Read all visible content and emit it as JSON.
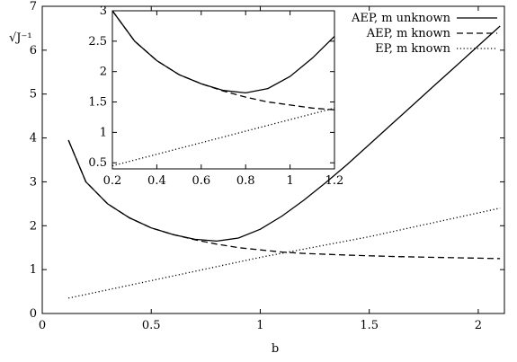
{
  "chart_data": [
    {
      "type": "line",
      "xlabel": "b",
      "ylabel": "√J⁻¹",
      "xlim": [
        0,
        2.12
      ],
      "ylim": [
        0,
        7
      ],
      "xticks": [
        "0",
        "0.5",
        "1",
        "1.5",
        "2"
      ],
      "yticks": [
        "0",
        "1",
        "2",
        "3",
        "4",
        "5",
        "6",
        "7"
      ],
      "legend_position": "top-right",
      "grid": false,
      "series": [
        {
          "name": "AEP, m unknown",
          "style": "solid",
          "x": [
            0.12,
            0.2,
            0.3,
            0.4,
            0.5,
            0.6,
            0.7,
            0.8,
            0.9,
            1.0,
            1.1,
            1.2,
            1.3,
            1.4,
            1.5,
            1.6,
            1.7,
            1.8,
            1.9,
            2.0,
            2.1
          ],
          "y": [
            3.95,
            3.0,
            2.5,
            2.18,
            1.95,
            1.8,
            1.69,
            1.65,
            1.72,
            1.92,
            2.22,
            2.58,
            2.98,
            3.4,
            3.85,
            4.3,
            4.75,
            5.2,
            5.65,
            6.1,
            6.55
          ]
        },
        {
          "name": "AEP, m known",
          "style": "dashed",
          "x": [
            0.12,
            0.2,
            0.3,
            0.4,
            0.5,
            0.6,
            0.7,
            0.8,
            0.9,
            1.0,
            1.1,
            1.2,
            1.4,
            1.6,
            1.8,
            2.0,
            2.1
          ],
          "y": [
            3.95,
            3.0,
            2.5,
            2.18,
            1.95,
            1.8,
            1.68,
            1.58,
            1.5,
            1.45,
            1.4,
            1.37,
            1.33,
            1.3,
            1.28,
            1.26,
            1.25
          ]
        },
        {
          "name": "EP, m known",
          "style": "dotted",
          "x": [
            0.12,
            0.5,
            1.0,
            1.5,
            2.1
          ],
          "y": [
            0.35,
            0.75,
            1.28,
            1.75,
            2.4
          ]
        }
      ]
    },
    {
      "type": "line",
      "xlim": [
        0.2,
        1.2
      ],
      "ylim": [
        0.4,
        3
      ],
      "xticks": [
        "0.2",
        "0.4",
        "0.6",
        "0.8",
        "1",
        "1.2"
      ],
      "yticks": [
        "0.5",
        "1",
        "1.5",
        "2",
        "2.5",
        "3"
      ],
      "series": [
        {
          "style": "solid",
          "x": [
            0.2,
            0.3,
            0.4,
            0.5,
            0.6,
            0.7,
            0.8,
            0.9,
            1.0,
            1.1,
            1.2
          ],
          "y": [
            3.0,
            2.5,
            2.18,
            1.95,
            1.8,
            1.69,
            1.65,
            1.72,
            1.92,
            2.22,
            2.58
          ]
        },
        {
          "style": "dashed",
          "x": [
            0.2,
            0.3,
            0.4,
            0.5,
            0.6,
            0.7,
            0.8,
            0.9,
            1.0,
            1.1,
            1.2
          ],
          "y": [
            3.0,
            2.5,
            2.18,
            1.95,
            1.8,
            1.68,
            1.58,
            1.5,
            1.45,
            1.4,
            1.37
          ]
        },
        {
          "style": "dotted",
          "x": [
            0.2,
            1.2
          ],
          "y": [
            0.45,
            1.4
          ]
        }
      ]
    }
  ]
}
